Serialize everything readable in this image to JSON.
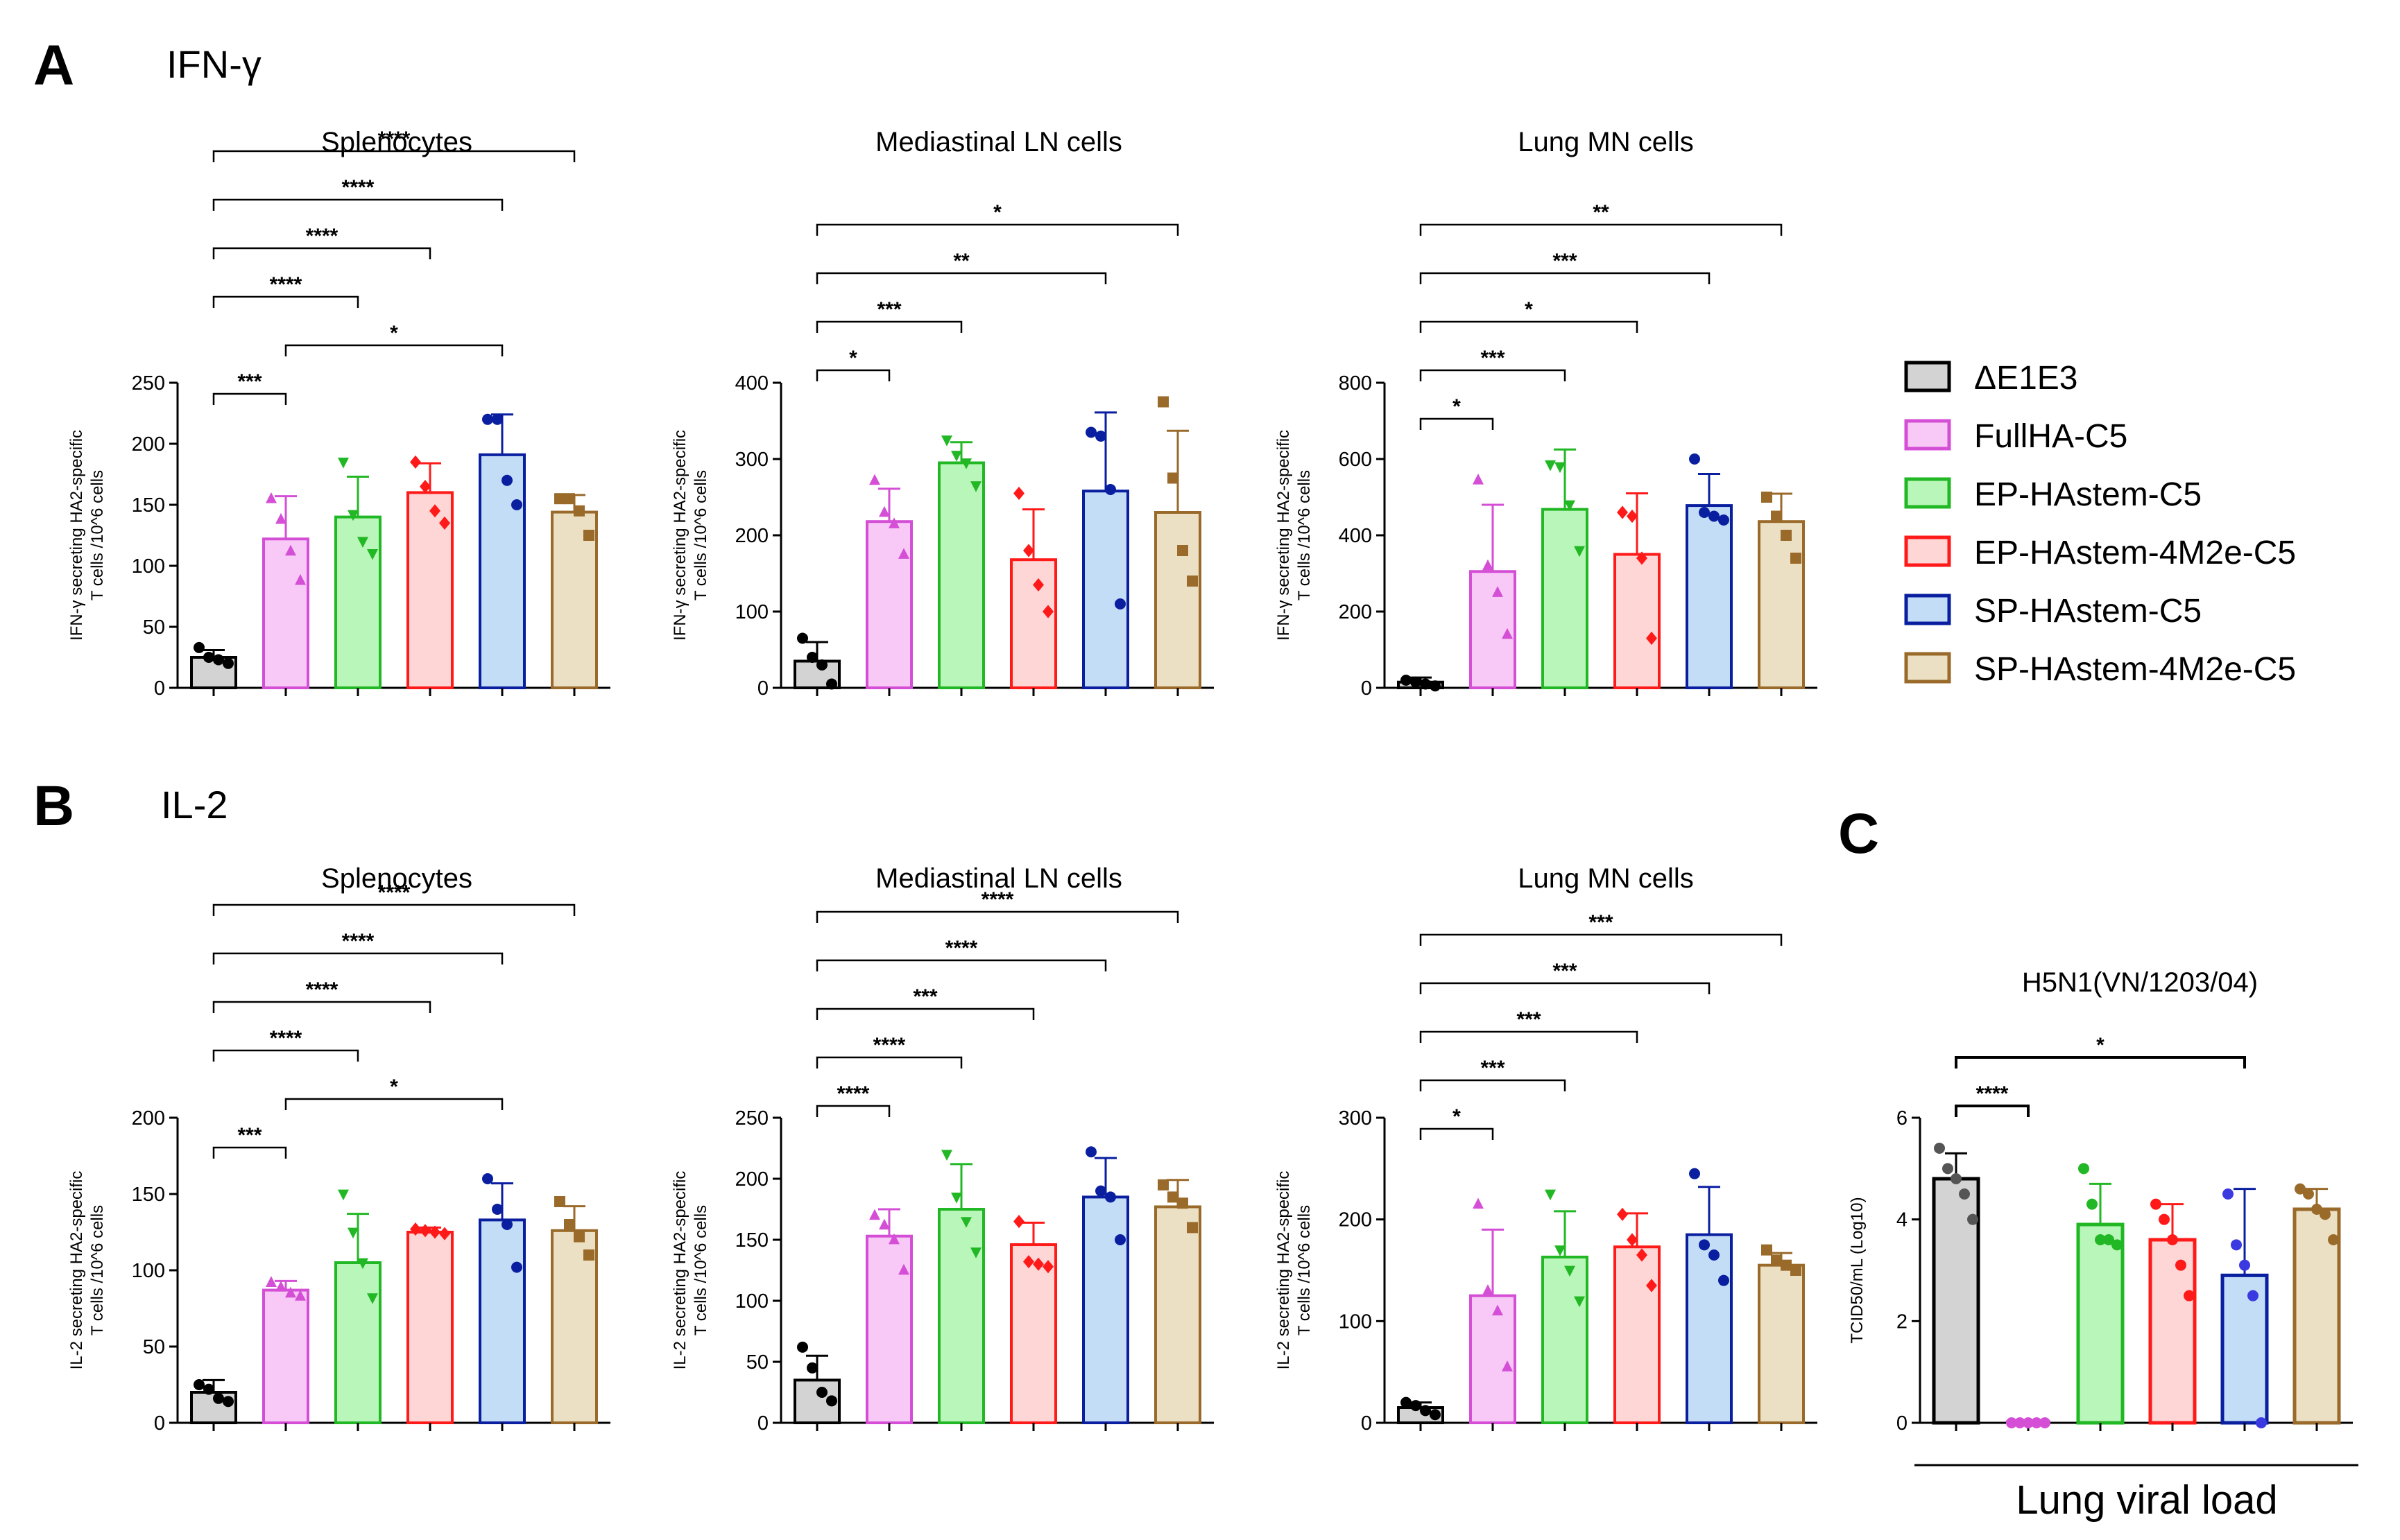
{
  "panels": [
    {
      "letter": "A",
      "title": "IFN-γ"
    },
    {
      "letter": "B",
      "title": "IL-2"
    },
    {
      "letter": "C",
      "title": ""
    }
  ],
  "legend": [
    {
      "label": "ΔE1E3",
      "stroke": "#000000",
      "fill": "#d3d3d3"
    },
    {
      "label": "FullHA-C5",
      "stroke": "#d44fd6",
      "fill": "#f8c9f6"
    },
    {
      "label": "EP-HAstem-C5",
      "stroke": "#22b825",
      "fill": "#b9f6b9"
    },
    {
      "label": "EP-HAstem-4M2e-C5",
      "stroke": "#ff1a1a",
      "fill": "#ffd6d6"
    },
    {
      "label": "SP-HAstem-C5",
      "stroke": "#0a1fa0",
      "fill": "#c4ddf7"
    },
    {
      "label": "SP-HAstem-4M2e-C5",
      "stroke": "#9a6a2a",
      "fill": "#ece0c4"
    }
  ],
  "c_point_colors": [
    "#555555",
    "#d44fd6",
    "#22b825",
    "#ff1a1a",
    "#3a3ae0",
    "#9a6a2a"
  ],
  "footer_label": "Lung viral load",
  "chart_data": [
    {
      "id": "a1",
      "type": "bar",
      "title": "Splenocytes",
      "ylabel": [
        "IFN-γ secreting HA2-specific",
        "T cells /10^6 cells"
      ],
      "ylim": [
        0,
        250
      ],
      "yticks": [
        "0",
        "50",
        "100",
        "150",
        "200",
        "250"
      ],
      "categories": [
        "ΔE1E3",
        "FullHA-C5",
        "EP-HAstem-C5",
        "EP-HAstem-4M2e-C5",
        "SP-HAstem-C5",
        "SP-HAstem-4M2e-C5"
      ],
      "values": [
        25,
        122,
        140,
        160,
        191,
        144
      ],
      "errors": [
        6,
        35,
        33,
        24,
        33,
        14
      ],
      "points": [
        [
          33,
          25,
          23,
          20
        ],
        [
          155,
          138,
          112,
          88
        ],
        [
          185,
          142,
          120,
          110
        ],
        [
          185,
          165,
          145,
          135
        ],
        [
          220,
          220,
          170,
          150
        ],
        [
          155,
          155,
          145,
          125
        ]
      ],
      "brackets": [
        {
          "from": 0,
          "to": 1,
          "label": "***"
        },
        {
          "from": 1,
          "to": 4,
          "label": "*"
        },
        {
          "from": 0,
          "to": 2,
          "label": "****"
        },
        {
          "from": 0,
          "to": 3,
          "label": "****"
        },
        {
          "from": 0,
          "to": 4,
          "label": "****"
        },
        {
          "from": 0,
          "to": 5,
          "label": "****"
        }
      ]
    },
    {
      "id": "a2",
      "type": "bar",
      "title": "Mediastinal LN cells",
      "ylabel": [
        "IFN-γ secreting HA2-specific",
        "T cells /10^6 cells"
      ],
      "ylim": [
        0,
        400
      ],
      "yticks": [
        "0",
        "100",
        "200",
        "300",
        "400"
      ],
      "categories": [
        "ΔE1E3",
        "FullHA-C5",
        "EP-HAstem-C5",
        "EP-HAstem-4M2e-C5",
        "SP-HAstem-C5",
        "SP-HAstem-4M2e-C5"
      ],
      "values": [
        35,
        218,
        295,
        168,
        258,
        230
      ],
      "errors": [
        25,
        43,
        27,
        66,
        103,
        107
      ],
      "points": [
        [
          65,
          40,
          30,
          5
        ],
        [
          272,
          230,
          215,
          175
        ],
        [
          325,
          305,
          295,
          265
        ],
        [
          255,
          180,
          135,
          100
        ],
        [
          335,
          330,
          260,
          110
        ],
        [
          375,
          275,
          180,
          140
        ]
      ],
      "brackets": [
        {
          "from": 0,
          "to": 1,
          "label": "*"
        },
        {
          "from": 0,
          "to": 2,
          "label": "***"
        },
        {
          "from": 0,
          "to": 4,
          "label": "**"
        },
        {
          "from": 0,
          "to": 5,
          "label": "*"
        }
      ]
    },
    {
      "id": "a3",
      "type": "bar",
      "title": "Lung MN cells",
      "ylabel": [
        "IFN-γ secreting HA2-specific",
        "T cells /10^6 cells"
      ],
      "ylim": [
        0,
        800
      ],
      "yticks": [
        "0",
        "200",
        "400",
        "600",
        "800"
      ],
      "categories": [
        "ΔE1E3",
        "FullHA-C5",
        "EP-HAstem-C5",
        "EP-HAstem-4M2e-C5",
        "SP-HAstem-C5",
        "SP-HAstem-4M2e-C5"
      ],
      "values": [
        15,
        305,
        468,
        350,
        478,
        436
      ],
      "errors": [
        12,
        175,
        157,
        160,
        83,
        73
      ],
      "points": [
        [
          20,
          15,
          10,
          5
        ],
        [
          545,
          320,
          250,
          140
        ],
        [
          585,
          580,
          480,
          360
        ],
        [
          460,
          450,
          340,
          130
        ],
        [
          600,
          460,
          450,
          440
        ],
        [
          500,
          450,
          400,
          340
        ]
      ],
      "brackets": [
        {
          "from": 0,
          "to": 1,
          "label": "*"
        },
        {
          "from": 0,
          "to": 2,
          "label": "***"
        },
        {
          "from": 0,
          "to": 3,
          "label": "*"
        },
        {
          "from": 0,
          "to": 4,
          "label": "***"
        },
        {
          "from": 0,
          "to": 5,
          "label": "**"
        }
      ]
    },
    {
      "id": "b1",
      "type": "bar",
      "title": "Splenocytes",
      "ylabel": [
        "IL-2 secreting HA2-specific",
        "T cells /10^6 cells"
      ],
      "ylim": [
        0,
        200
      ],
      "yticks": [
        "0",
        "50",
        "100",
        "150",
        "200"
      ],
      "categories": [
        "ΔE1E3",
        "FullHA-C5",
        "EP-HAstem-C5",
        "EP-HAstem-4M2e-C5",
        "SP-HAstem-C5",
        "SP-HAstem-4M2e-C5"
      ],
      "values": [
        20,
        87,
        105,
        125,
        133,
        126
      ],
      "errors": [
        8,
        6,
        32,
        3,
        24,
        16
      ],
      "points": [
        [
          25,
          22,
          16,
          14
        ],
        [
          92,
          89,
          85,
          83
        ],
        [
          150,
          125,
          105,
          82
        ],
        [
          127,
          126,
          125,
          124
        ],
        [
          160,
          140,
          130,
          102
        ],
        [
          145,
          130,
          122,
          110
        ]
      ],
      "brackets": [
        {
          "from": 0,
          "to": 1,
          "label": "***"
        },
        {
          "from": 1,
          "to": 4,
          "label": "*"
        },
        {
          "from": 0,
          "to": 2,
          "label": "****"
        },
        {
          "from": 0,
          "to": 3,
          "label": "****"
        },
        {
          "from": 0,
          "to": 4,
          "label": "****"
        },
        {
          "from": 0,
          "to": 5,
          "label": "****"
        }
      ]
    },
    {
      "id": "b2",
      "type": "bar",
      "title": "Mediastinal LN cells",
      "ylabel": [
        "IL-2 secreting HA2-specific",
        "T cells /10^6 cells"
      ],
      "ylim": [
        0,
        250
      ],
      "yticks": [
        "0",
        "50",
        "100",
        "150",
        "200",
        "250"
      ],
      "categories": [
        "ΔE1E3",
        "FullHA-C5",
        "EP-HAstem-C5",
        "EP-HAstem-4M2e-C5",
        "SP-HAstem-C5",
        "SP-HAstem-4M2e-C5"
      ],
      "values": [
        35,
        153,
        175,
        146,
        185,
        177
      ],
      "errors": [
        20,
        22,
        37,
        18,
        32,
        22
      ],
      "points": [
        [
          62,
          45,
          25,
          18
        ],
        [
          170,
          162,
          150,
          125
        ],
        [
          220,
          185,
          165,
          140
        ],
        [
          165,
          132,
          130,
          128
        ],
        [
          222,
          190,
          185,
          150
        ],
        [
          195,
          185,
          180,
          160
        ]
      ],
      "brackets": [
        {
          "from": 0,
          "to": 1,
          "label": "****"
        },
        {
          "from": 0,
          "to": 2,
          "label": "****"
        },
        {
          "from": 0,
          "to": 3,
          "label": "***"
        },
        {
          "from": 0,
          "to": 4,
          "label": "****"
        },
        {
          "from": 0,
          "to": 5,
          "label": "****"
        }
      ]
    },
    {
      "id": "b3",
      "type": "bar",
      "title": "Lung MN cells",
      "ylabel": [
        "IL-2 secreting HA2-specific",
        "T cells /10^6 cells"
      ],
      "ylim": [
        0,
        300
      ],
      "yticks": [
        "0",
        "100",
        "200",
        "300"
      ],
      "categories": [
        "ΔE1E3",
        "FullHA-C5",
        "EP-HAstem-C5",
        "EP-HAstem-4M2e-C5",
        "SP-HAstem-C5",
        "SP-HAstem-4M2e-C5"
      ],
      "values": [
        15,
        125,
        163,
        173,
        185,
        155
      ],
      "errors": [
        5,
        65,
        45,
        33,
        47,
        12
      ],
      "points": [
        [
          20,
          17,
          12,
          8
        ],
        [
          215,
          130,
          110,
          55
        ],
        [
          225,
          170,
          150,
          120
        ],
        [
          205,
          180,
          165,
          135
        ],
        [
          245,
          175,
          165,
          140
        ],
        [
          170,
          160,
          155,
          150
        ]
      ],
      "brackets": [
        {
          "from": 0,
          "to": 1,
          "label": "*"
        },
        {
          "from": 0,
          "to": 2,
          "label": "***"
        },
        {
          "from": 0,
          "to": 3,
          "label": "***"
        },
        {
          "from": 0,
          "to": 4,
          "label": "***"
        },
        {
          "from": 0,
          "to": 5,
          "label": "***"
        }
      ]
    },
    {
      "id": "c1",
      "type": "bar",
      "title": "H5N1(VN/1203/04)",
      "ylabel": [
        "TCID50/mL (Log10)"
      ],
      "ylim": [
        0,
        6
      ],
      "yticks": [
        "0",
        "2",
        "4",
        "6"
      ],
      "categories": [
        "ΔE1E3",
        "FullHA-C5",
        "EP-HAstem-C5",
        "EP-HAstem-4M2e-C5",
        "SP-HAstem-C5",
        "SP-HAstem-4M2e-C5"
      ],
      "values": [
        4.8,
        0,
        3.9,
        3.6,
        2.9,
        4.2
      ],
      "errors": [
        0.5,
        0,
        0.8,
        0.7,
        1.7,
        0.4
      ],
      "points": [
        [
          5.4,
          5.0,
          4.8,
          4.5,
          4.0
        ],
        [
          0,
          0,
          0,
          0,
          0
        ],
        [
          5.0,
          4.3,
          3.6,
          3.6,
          3.5
        ],
        [
          4.3,
          4.0,
          3.6,
          3.1,
          2.5
        ],
        [
          4.5,
          3.5,
          3.1,
          2.5,
          0
        ],
        [
          4.6,
          4.5,
          4.2,
          4.1,
          3.6
        ]
      ],
      "brackets": [
        {
          "from": 0,
          "to": 1,
          "label": "****"
        },
        {
          "from": 0,
          "to": 4,
          "label": "*"
        }
      ]
    }
  ]
}
